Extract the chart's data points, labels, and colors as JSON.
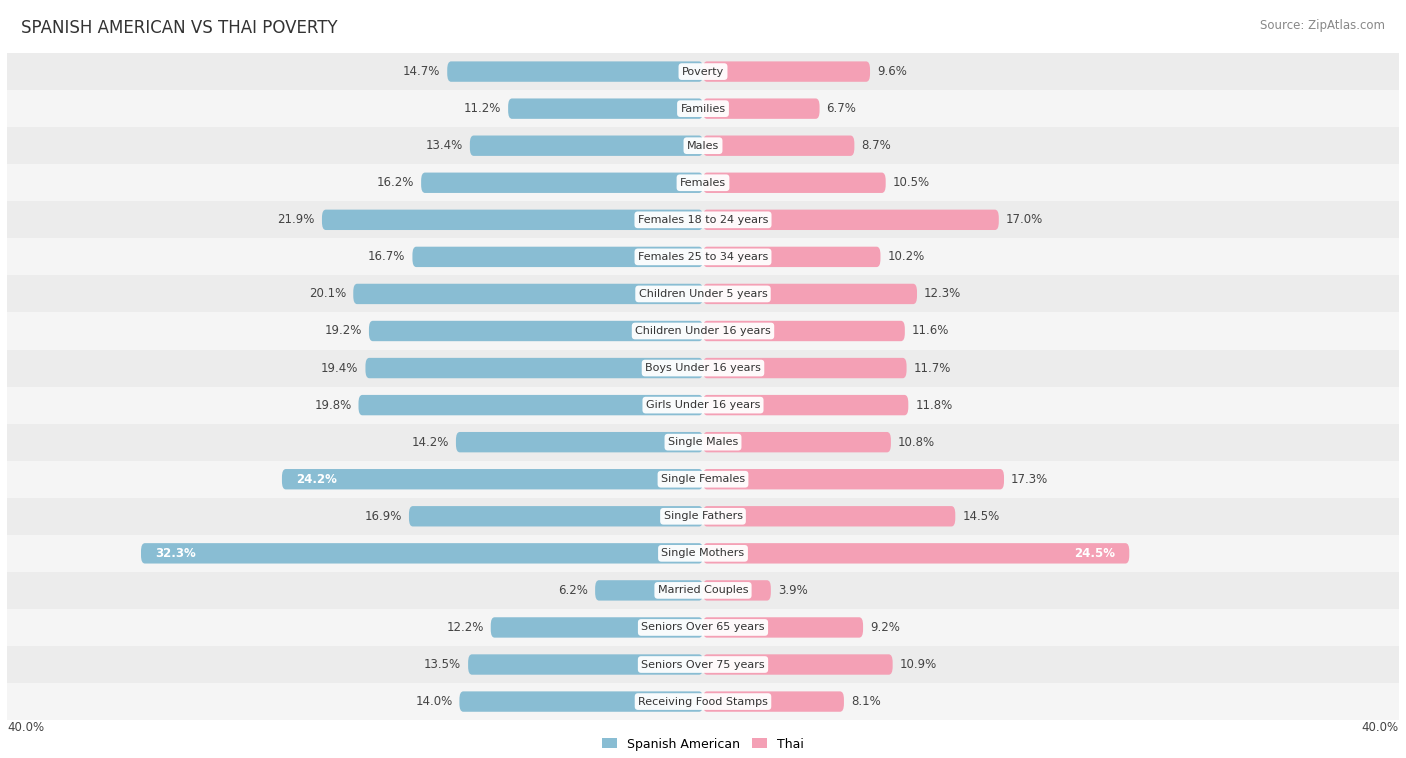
{
  "title": "SPANISH AMERICAN VS THAI POVERTY",
  "source": "Source: ZipAtlas.com",
  "categories": [
    "Poverty",
    "Families",
    "Males",
    "Females",
    "Females 18 to 24 years",
    "Females 25 to 34 years",
    "Children Under 5 years",
    "Children Under 16 years",
    "Boys Under 16 years",
    "Girls Under 16 years",
    "Single Males",
    "Single Females",
    "Single Fathers",
    "Single Mothers",
    "Married Couples",
    "Seniors Over 65 years",
    "Seniors Over 75 years",
    "Receiving Food Stamps"
  ],
  "spanish_american": [
    14.7,
    11.2,
    13.4,
    16.2,
    21.9,
    16.7,
    20.1,
    19.2,
    19.4,
    19.8,
    14.2,
    24.2,
    16.9,
    32.3,
    6.2,
    12.2,
    13.5,
    14.0
  ],
  "thai": [
    9.6,
    6.7,
    8.7,
    10.5,
    17.0,
    10.2,
    12.3,
    11.6,
    11.7,
    11.8,
    10.8,
    17.3,
    14.5,
    24.5,
    3.9,
    9.2,
    10.9,
    8.1
  ],
  "spanish_color": "#89bdd3",
  "thai_color": "#f4a0b5",
  "max_val": 40.0,
  "label_fontsize": 8.5,
  "title_fontsize": 12,
  "source_fontsize": 8.5,
  "category_fontsize": 8.0,
  "row_colors": [
    "#ececec",
    "#f5f5f5"
  ]
}
